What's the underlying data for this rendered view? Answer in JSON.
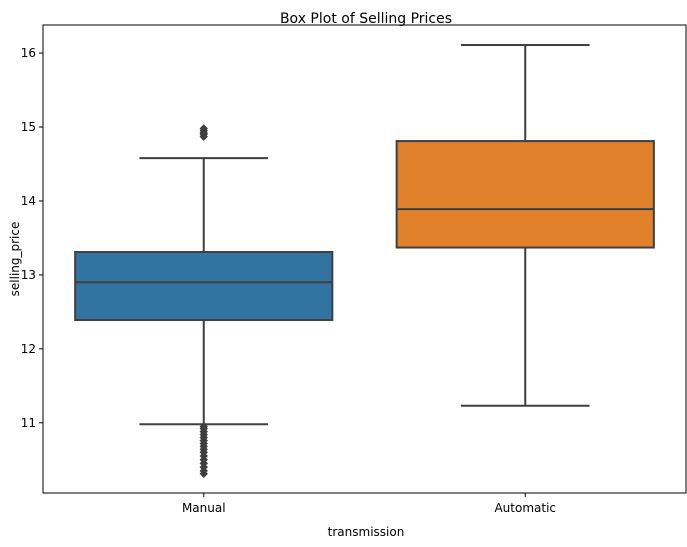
{
  "chart_data": {
    "type": "box",
    "title": "Box Plot of Selling Prices",
    "xlabel": "transmission",
    "ylabel": "selling_price",
    "ylim": [
      10.05,
      16.38
    ],
    "yticks": [
      11,
      12,
      13,
      14,
      15,
      16
    ],
    "grid": false,
    "categories": [
      "Manual",
      "Automatic"
    ],
    "boxes": [
      {
        "category": "Manual",
        "whisker_low": 10.98,
        "q1": 12.39,
        "median": 12.9,
        "q3": 13.31,
        "whisker_high": 14.58,
        "color": "#3274a1",
        "outliers": [
          14.87,
          14.9,
          14.92,
          14.95,
          14.98,
          10.95,
          10.92,
          10.88,
          10.84,
          10.8,
          10.76,
          10.72,
          10.68,
          10.64,
          10.6,
          10.55,
          10.5,
          10.45,
          10.4,
          10.35,
          10.31
        ]
      },
      {
        "category": "Automatic",
        "whisker_low": 11.23,
        "q1": 13.37,
        "median": 13.89,
        "q3": 14.81,
        "whisker_high": 16.11,
        "color": "#e1812c",
        "outliers": []
      }
    ],
    "line_color": "#3f3f3f"
  }
}
